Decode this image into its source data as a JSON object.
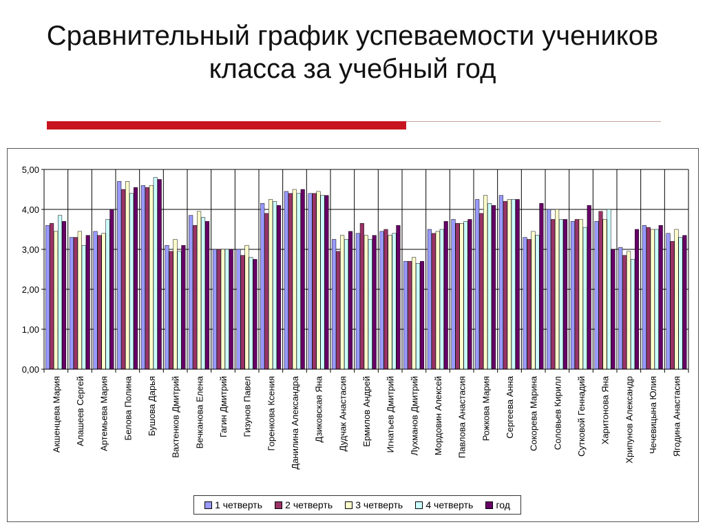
{
  "slide": {
    "title_line1": "Сравнительный график успеваемости учеников",
    "title_line2": "класса за учебный год"
  },
  "chart_data": {
    "type": "bar",
    "ylim": [
      0,
      5
    ],
    "yticks": [
      "0,00",
      "1,00",
      "2,00",
      "3,00",
      "4,00",
      "5,00"
    ],
    "grid": true,
    "legend_position": "bottom",
    "categories": [
      "Акшенцева Мария",
      "Алашеев Сергей",
      "Артемьева Мария",
      "Белова Полина",
      "Бушова Дарья",
      "Вахтенков Дмитрий",
      "Вечканова Елена",
      "Гагин Дмитрий",
      "Гизунов Павел",
      "Горенкова Ксения",
      "Данилина Александра",
      "Дзиковская Яна",
      "Дудчак Анастасия",
      "Ермилов Андрей",
      "Игнатьев Дмитрий",
      "Лухманов Дмитрий",
      "Мордовин Алексей",
      "Павлова Анастасия",
      "Рожкова Мария",
      "Сергеева Анна",
      "Сокорева Марина",
      "Соловьев Кирилл",
      "Сутковой Геннадий",
      "Харитонова Яна",
      "Хрипунов Александр",
      "Чечевицына Юлия",
      "Ягодина Анастасия"
    ],
    "series": [
      {
        "name": "1 четверть",
        "color": "#9999ff",
        "values": [
          3.6,
          3.3,
          3.45,
          4.7,
          4.6,
          3.1,
          3.85,
          3.0,
          3.0,
          4.15,
          4.45,
          4.4,
          3.25,
          3.4,
          3.45,
          2.7,
          3.5,
          3.75,
          4.25,
          4.35,
          3.3,
          4.0,
          3.7,
          3.7,
          3.05,
          3.6,
          3.4
        ]
      },
      {
        "name": "2 четверть",
        "color": "#993366",
        "values": [
          3.65,
          3.3,
          3.35,
          4.5,
          4.55,
          2.95,
          3.6,
          3.0,
          2.85,
          3.9,
          4.4,
          4.4,
          2.95,
          3.65,
          3.5,
          2.7,
          3.4,
          3.65,
          3.9,
          4.2,
          3.25,
          3.75,
          3.75,
          3.95,
          2.85,
          3.55,
          3.2
        ]
      },
      {
        "name": "3 четверть",
        "color": "#ffffcc",
        "values": [
          3.45,
          3.45,
          3.4,
          4.7,
          4.6,
          3.25,
          3.95,
          3.0,
          3.1,
          4.25,
          4.5,
          4.45,
          3.35,
          3.35,
          3.35,
          2.8,
          3.45,
          3.65,
          4.35,
          4.25,
          3.45,
          4.0,
          3.75,
          3.75,
          2.95,
          3.5,
          3.5
        ]
      },
      {
        "name": "4 четверть",
        "color": "#ccffff",
        "values": [
          3.85,
          3.1,
          3.75,
          4.4,
          4.8,
          2.95,
          3.8,
          3.0,
          2.8,
          4.2,
          4.4,
          4.35,
          3.25,
          3.25,
          3.4,
          2.65,
          3.5,
          3.7,
          4.15,
          4.25,
          3.35,
          3.75,
          3.55,
          4.0,
          2.75,
          3.5,
          3.3
        ]
      },
      {
        "name": "год",
        "color": "#660066",
        "values": [
          3.7,
          3.35,
          4.0,
          4.55,
          4.75,
          3.1,
          3.7,
          3.0,
          2.75,
          4.1,
          4.5,
          4.35,
          3.45,
          3.35,
          3.6,
          2.7,
          3.7,
          3.75,
          4.1,
          4.25,
          4.15,
          3.75,
          4.1,
          3.0,
          3.5,
          3.6,
          3.35
        ]
      }
    ]
  }
}
